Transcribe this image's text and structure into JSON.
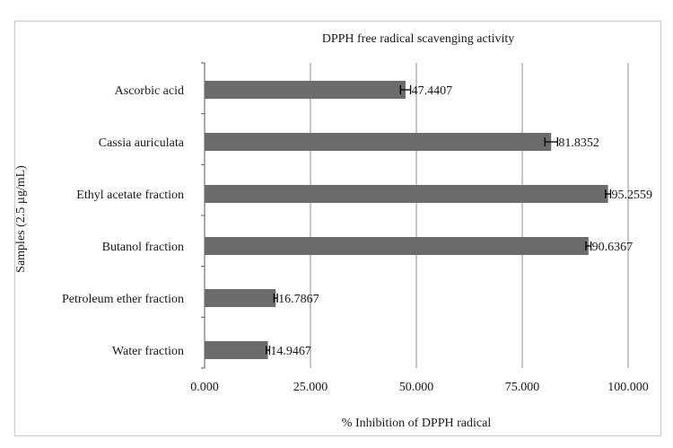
{
  "chart_data": {
    "type": "bar",
    "orientation": "horizontal",
    "title": "DPPH free radical  scavenging activity",
    "xlabel": "% Inhibition of DPPH radical",
    "ylabel": "Samples (2.5 µg/mL)",
    "xlim": [
      0,
      100
    ],
    "x_ticks": [
      0,
      25,
      50,
      75,
      100
    ],
    "x_tick_labels": [
      "0.000",
      "25.000",
      "50.000",
      "75.000",
      "100.000"
    ],
    "grid": "vertical",
    "categories": [
      "Ascorbic acid",
      "Cassia auriculata",
      "Ethyl acetate fraction",
      "Butanol fraction",
      "Petroleum ether fraction",
      "Water fraction"
    ],
    "values": [
      47.4407,
      81.8352,
      95.2559,
      90.6367,
      16.7867,
      14.9467
    ],
    "value_labels": [
      "47.4407",
      "81.8352",
      "95.2559",
      "90.6367",
      "16.7867",
      "14.9467"
    ],
    "errors": [
      1.2,
      1.5,
      0.6,
      0.6,
      0.4,
      0.4
    ],
    "colors": {
      "bar": "#6b6b6b",
      "grid": "#8c8c8c",
      "error": "#000000"
    }
  }
}
